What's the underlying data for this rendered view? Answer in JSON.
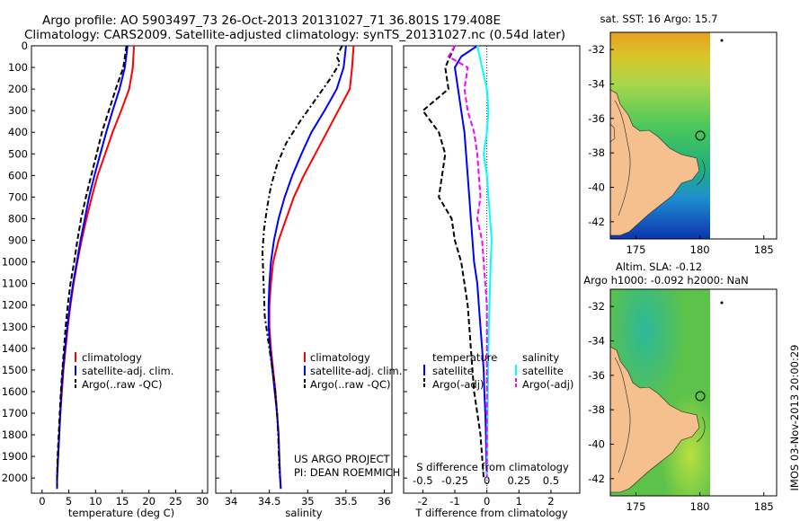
{
  "header": {
    "line1": "Argo profile: AO 5903497_73 26-Oct-2013 20131027_71 36.801S 179.408E",
    "line2": "Climatology: CARS2009. Satellite-adjusted climatology: synTS_20131027.nc (0.54d later)"
  },
  "credit": {
    "project": "US ARGO PROJECT",
    "pi": "PI: DEAN ROEMMICH"
  },
  "footer_vertical": "IMOS 03-Nov-2013 20:00:29",
  "colors": {
    "climatology": "#ff0000",
    "satellite": "#0000ff",
    "argo": "#000000",
    "sal_satellite": "#00ffff",
    "sal_argo": "#ff00ff",
    "land": "#f5c08e"
  },
  "chart_data": [
    {
      "type": "line",
      "id": "temperature",
      "xlabel": "temperature (deg C)",
      "xlim": [
        -2,
        31
      ],
      "ylim": [
        2070,
        0
      ],
      "xticks": [
        0,
        5,
        10,
        15,
        20,
        25,
        30
      ],
      "yticks": [
        0,
        100,
        200,
        300,
        400,
        500,
        600,
        700,
        800,
        900,
        1000,
        1100,
        1200,
        1300,
        1400,
        1500,
        1600,
        1700,
        1800,
        1900,
        2000
      ],
      "legend": [
        "climatology",
        "satellite-adj. clim.",
        "Argo(..raw -QC)"
      ],
      "series": [
        {
          "name": "climatology",
          "color": "#ff0000",
          "style": "solid",
          "points": [
            [
              17.2,
              0
            ],
            [
              17.0,
              100
            ],
            [
              16.3,
              200
            ],
            [
              14.8,
              300
            ],
            [
              13.2,
              400
            ],
            [
              11.8,
              500
            ],
            [
              10.4,
              600
            ],
            [
              9.3,
              700
            ],
            [
              8.3,
              800
            ],
            [
              7.4,
              900
            ],
            [
              6.6,
              1000
            ],
            [
              5.9,
              1100
            ],
            [
              5.3,
              1200
            ],
            [
              4.8,
              1300
            ],
            [
              4.4,
              1400
            ],
            [
              4.0,
              1500
            ],
            [
              3.7,
              1600
            ],
            [
              3.4,
              1700
            ],
            [
              3.2,
              1800
            ],
            [
              3.0,
              1900
            ],
            [
              2.8,
              2000
            ],
            [
              2.8,
              2050
            ]
          ]
        },
        {
          "name": "satellite-adj. clim.",
          "color": "#0000ff",
          "style": "solid",
          "points": [
            [
              16.0,
              0
            ],
            [
              15.5,
              100
            ],
            [
              14.5,
              200
            ],
            [
              13.2,
              300
            ],
            [
              12.0,
              400
            ],
            [
              10.9,
              500
            ],
            [
              9.8,
              600
            ],
            [
              8.8,
              700
            ],
            [
              8.0,
              800
            ],
            [
              7.2,
              900
            ],
            [
              6.5,
              1000
            ],
            [
              5.8,
              1100
            ],
            [
              5.2,
              1200
            ],
            [
              4.7,
              1300
            ],
            [
              4.3,
              1400
            ],
            [
              3.9,
              1500
            ],
            [
              3.6,
              1600
            ],
            [
              3.4,
              1700
            ],
            [
              3.2,
              1800
            ],
            [
              3.0,
              1900
            ],
            [
              2.8,
              2000
            ],
            [
              2.8,
              2050
            ]
          ]
        },
        {
          "name": "Argo(..raw -QC)",
          "color": "#000000",
          "style": "dashed",
          "points": [
            [
              15.8,
              0
            ],
            [
              15.2,
              100
            ],
            [
              13.8,
              200
            ],
            [
              12.5,
              300
            ],
            [
              11.2,
              400
            ],
            [
              10.2,
              500
            ],
            [
              9.2,
              600
            ],
            [
              8.2,
              700
            ],
            [
              7.3,
              800
            ],
            [
              6.6,
              900
            ],
            [
              6.0,
              1000
            ],
            [
              5.3,
              1100
            ],
            [
              4.8,
              1200
            ],
            [
              4.4,
              1300
            ],
            [
              4.1,
              1400
            ],
            [
              3.8,
              1500
            ],
            [
              3.5,
              1600
            ],
            [
              3.3,
              1700
            ],
            [
              3.1,
              1800
            ],
            [
              2.9,
              1900
            ],
            [
              2.8,
              2000
            ],
            [
              2.8,
              2040
            ]
          ]
        }
      ]
    },
    {
      "type": "line",
      "id": "salinity",
      "xlabel": "salinity",
      "xlim": [
        33.8,
        36.1
      ],
      "ylim": [
        2070,
        0
      ],
      "xticks": [
        34,
        34.5,
        35,
        35.5,
        36
      ],
      "legend": [
        "climatology",
        "satellite-adj. clim.",
        "Argo(..raw -QC)"
      ],
      "series": [
        {
          "name": "climatology",
          "color": "#ff0000",
          "style": "solid",
          "points": [
            [
              35.6,
              0
            ],
            [
              35.58,
              100
            ],
            [
              35.55,
              200
            ],
            [
              35.4,
              300
            ],
            [
              35.25,
              400
            ],
            [
              35.1,
              500
            ],
            [
              34.95,
              600
            ],
            [
              34.82,
              700
            ],
            [
              34.72,
              800
            ],
            [
              34.62,
              900
            ],
            [
              34.55,
              1000
            ],
            [
              34.52,
              1100
            ],
            [
              34.5,
              1200
            ],
            [
              34.5,
              1300
            ],
            [
              34.52,
              1400
            ],
            [
              34.55,
              1500
            ],
            [
              34.58,
              1600
            ],
            [
              34.6,
              1700
            ],
            [
              34.62,
              1800
            ],
            [
              34.63,
              1900
            ],
            [
              34.64,
              2000
            ],
            [
              34.65,
              2050
            ]
          ]
        },
        {
          "name": "satellite-adj. clim.",
          "color": "#0000ff",
          "style": "solid",
          "points": [
            [
              35.5,
              0
            ],
            [
              35.47,
              100
            ],
            [
              35.38,
              200
            ],
            [
              35.22,
              300
            ],
            [
              35.05,
              400
            ],
            [
              34.92,
              500
            ],
            [
              34.8,
              600
            ],
            [
              34.7,
              700
            ],
            [
              34.62,
              800
            ],
            [
              34.56,
              900
            ],
            [
              34.52,
              1000
            ],
            [
              34.5,
              1100
            ],
            [
              34.49,
              1200
            ],
            [
              34.49,
              1300
            ],
            [
              34.51,
              1400
            ],
            [
              34.54,
              1500
            ],
            [
              34.57,
              1600
            ],
            [
              34.6,
              1700
            ],
            [
              34.62,
              1800
            ],
            [
              34.63,
              1900
            ],
            [
              34.64,
              2000
            ],
            [
              34.65,
              2050
            ]
          ]
        },
        {
          "name": "Argo(..raw -QC)",
          "color": "#000000",
          "style": "dashdot",
          "points": [
            [
              35.45,
              0
            ],
            [
              35.38,
              50
            ],
            [
              35.42,
              80
            ],
            [
              35.3,
              150
            ],
            [
              35.1,
              250
            ],
            [
              34.9,
              350
            ],
            [
              34.72,
              450
            ],
            [
              34.6,
              550
            ],
            [
              34.52,
              650
            ],
            [
              34.47,
              750
            ],
            [
              34.43,
              850
            ],
            [
              34.41,
              950
            ],
            [
              34.42,
              1050
            ],
            [
              34.43,
              1150
            ],
            [
              34.44,
              1250
            ],
            [
              34.48,
              1350
            ],
            [
              34.52,
              1450
            ],
            [
              34.56,
              1550
            ],
            [
              34.59,
              1650
            ],
            [
              34.61,
              1750
            ],
            [
              34.62,
              1850
            ],
            [
              34.63,
              1950
            ],
            [
              34.64,
              2000
            ]
          ]
        }
      ]
    },
    {
      "type": "line",
      "id": "difference",
      "xlabel": "T difference from climatology",
      "xlabel_top": "S difference from climatology",
      "xlim": [
        -2.6,
        2.9
      ],
      "ylim": [
        2070,
        0
      ],
      "xticks": [
        -2,
        -1,
        0,
        1,
        2
      ],
      "xticks_top": [
        "-0.5",
        "-0.25",
        "0",
        "0.25",
        "0.5"
      ],
      "legend_left_title": "temperature",
      "legend_right_title": "salinity",
      "legend": [
        "satellite",
        "Argo(-adj)",
        "satellite",
        "Argo(-adj)"
      ],
      "series": [
        {
          "name": "satellite",
          "color": "#0000ff",
          "style": "solid",
          "points": [
            [
              -0.3,
              0
            ],
            [
              -0.8,
              50
            ],
            [
              -1.0,
              100
            ],
            [
              -0.9,
              200
            ],
            [
              -0.8,
              300
            ],
            [
              -0.7,
              400
            ],
            [
              -0.65,
              500
            ],
            [
              -0.6,
              600
            ],
            [
              -0.55,
              700
            ],
            [
              -0.5,
              800
            ],
            [
              -0.45,
              900
            ],
            [
              -0.4,
              1000
            ],
            [
              -0.3,
              1100
            ],
            [
              -0.25,
              1200
            ],
            [
              -0.2,
              1300
            ],
            [
              -0.15,
              1400
            ],
            [
              -0.1,
              1500
            ],
            [
              -0.08,
              1600
            ],
            [
              -0.05,
              1700
            ],
            [
              -0.03,
              1800
            ],
            [
              -0.02,
              1900
            ],
            [
              0,
              2000
            ]
          ]
        },
        {
          "name": "Argo(-adj)",
          "color": "#000000",
          "style": "dashed",
          "points": [
            [
              -1.0,
              0
            ],
            [
              -1.3,
              100
            ],
            [
              -1.2,
              200
            ],
            [
              -2.0,
              300
            ],
            [
              -1.5,
              400
            ],
            [
              -1.3,
              500
            ],
            [
              -1.4,
              600
            ],
            [
              -1.5,
              700
            ],
            [
              -1.1,
              800
            ],
            [
              -1.0,
              900
            ],
            [
              -0.8,
              1000
            ],
            [
              -0.7,
              1100
            ],
            [
              -0.6,
              1200
            ],
            [
              -0.55,
              1300
            ],
            [
              -0.5,
              1400
            ],
            [
              -0.45,
              1500
            ],
            [
              -0.4,
              1600
            ],
            [
              -0.3,
              1700
            ],
            [
              -0.2,
              1800
            ],
            [
              -0.15,
              1900
            ],
            [
              -0.1,
              2000
            ]
          ]
        },
        {
          "name": "satellite",
          "color": "#00ffff",
          "style": "solid",
          "points": [
            [
              -0.3,
              0
            ],
            [
              -0.15,
              100
            ],
            [
              0,
              200
            ],
            [
              0.05,
              300
            ],
            [
              0.0,
              400
            ],
            [
              -0.1,
              500
            ],
            [
              0.0,
              600
            ],
            [
              0.05,
              700
            ],
            [
              0.1,
              800
            ],
            [
              0.15,
              900
            ],
            [
              0.12,
              1000
            ],
            [
              0.1,
              1100
            ],
            [
              0.08,
              1200
            ],
            [
              0.06,
              1300
            ],
            [
              0.05,
              1400
            ],
            [
              0.04,
              1500
            ],
            [
              0.03,
              1600
            ],
            [
              0.02,
              1700
            ],
            [
              0.01,
              1800
            ],
            [
              0.0,
              1900
            ],
            [
              0,
              2000
            ]
          ]
        },
        {
          "name": "Argo(-adj)",
          "color": "#ff00ff",
          "style": "dashed",
          "points": [
            [
              -1.0,
              0
            ],
            [
              -1.2,
              50
            ],
            [
              -0.6,
              100
            ],
            [
              -0.7,
              200
            ],
            [
              -0.6,
              300
            ],
            [
              -0.4,
              400
            ],
            [
              -0.3,
              500
            ],
            [
              -0.25,
              600
            ],
            [
              -0.2,
              700
            ],
            [
              -0.3,
              800
            ],
            [
              -0.15,
              900
            ],
            [
              -0.1,
              1000
            ],
            [
              -0.05,
              1100
            ],
            [
              0,
              1200
            ],
            [
              0,
              1300
            ],
            [
              0,
              1400
            ],
            [
              0,
              1500
            ],
            [
              0,
              1600
            ],
            [
              0,
              1700
            ],
            [
              0,
              1800
            ],
            [
              0,
              1900
            ],
            [
              0,
              2000
            ]
          ]
        }
      ]
    },
    {
      "type": "heatmap",
      "id": "sst_map",
      "title": "sat. SST: 16 Argo: 15.7",
      "xticks": [
        175,
        180,
        185
      ],
      "yticks": [
        -32,
        -34,
        -36,
        -38,
        -40,
        -42
      ],
      "xlim": [
        173,
        186
      ],
      "ylim": [
        -43,
        -31
      ],
      "argo_position": [
        179.408,
        -36.801
      ]
    },
    {
      "type": "heatmap",
      "id": "sla_map",
      "title_line1": "Altim. SLA: -0.12",
      "title_line2": "Argo h1000: -0.092 h2000: NaN",
      "xticks": [
        175,
        180,
        185
      ],
      "yticks": [
        -32,
        -34,
        -36,
        -38,
        -40,
        -42
      ],
      "xlim": [
        173,
        186
      ],
      "ylim": [
        -43,
        -31
      ],
      "argo_position": [
        179.408,
        -36.801
      ]
    }
  ]
}
